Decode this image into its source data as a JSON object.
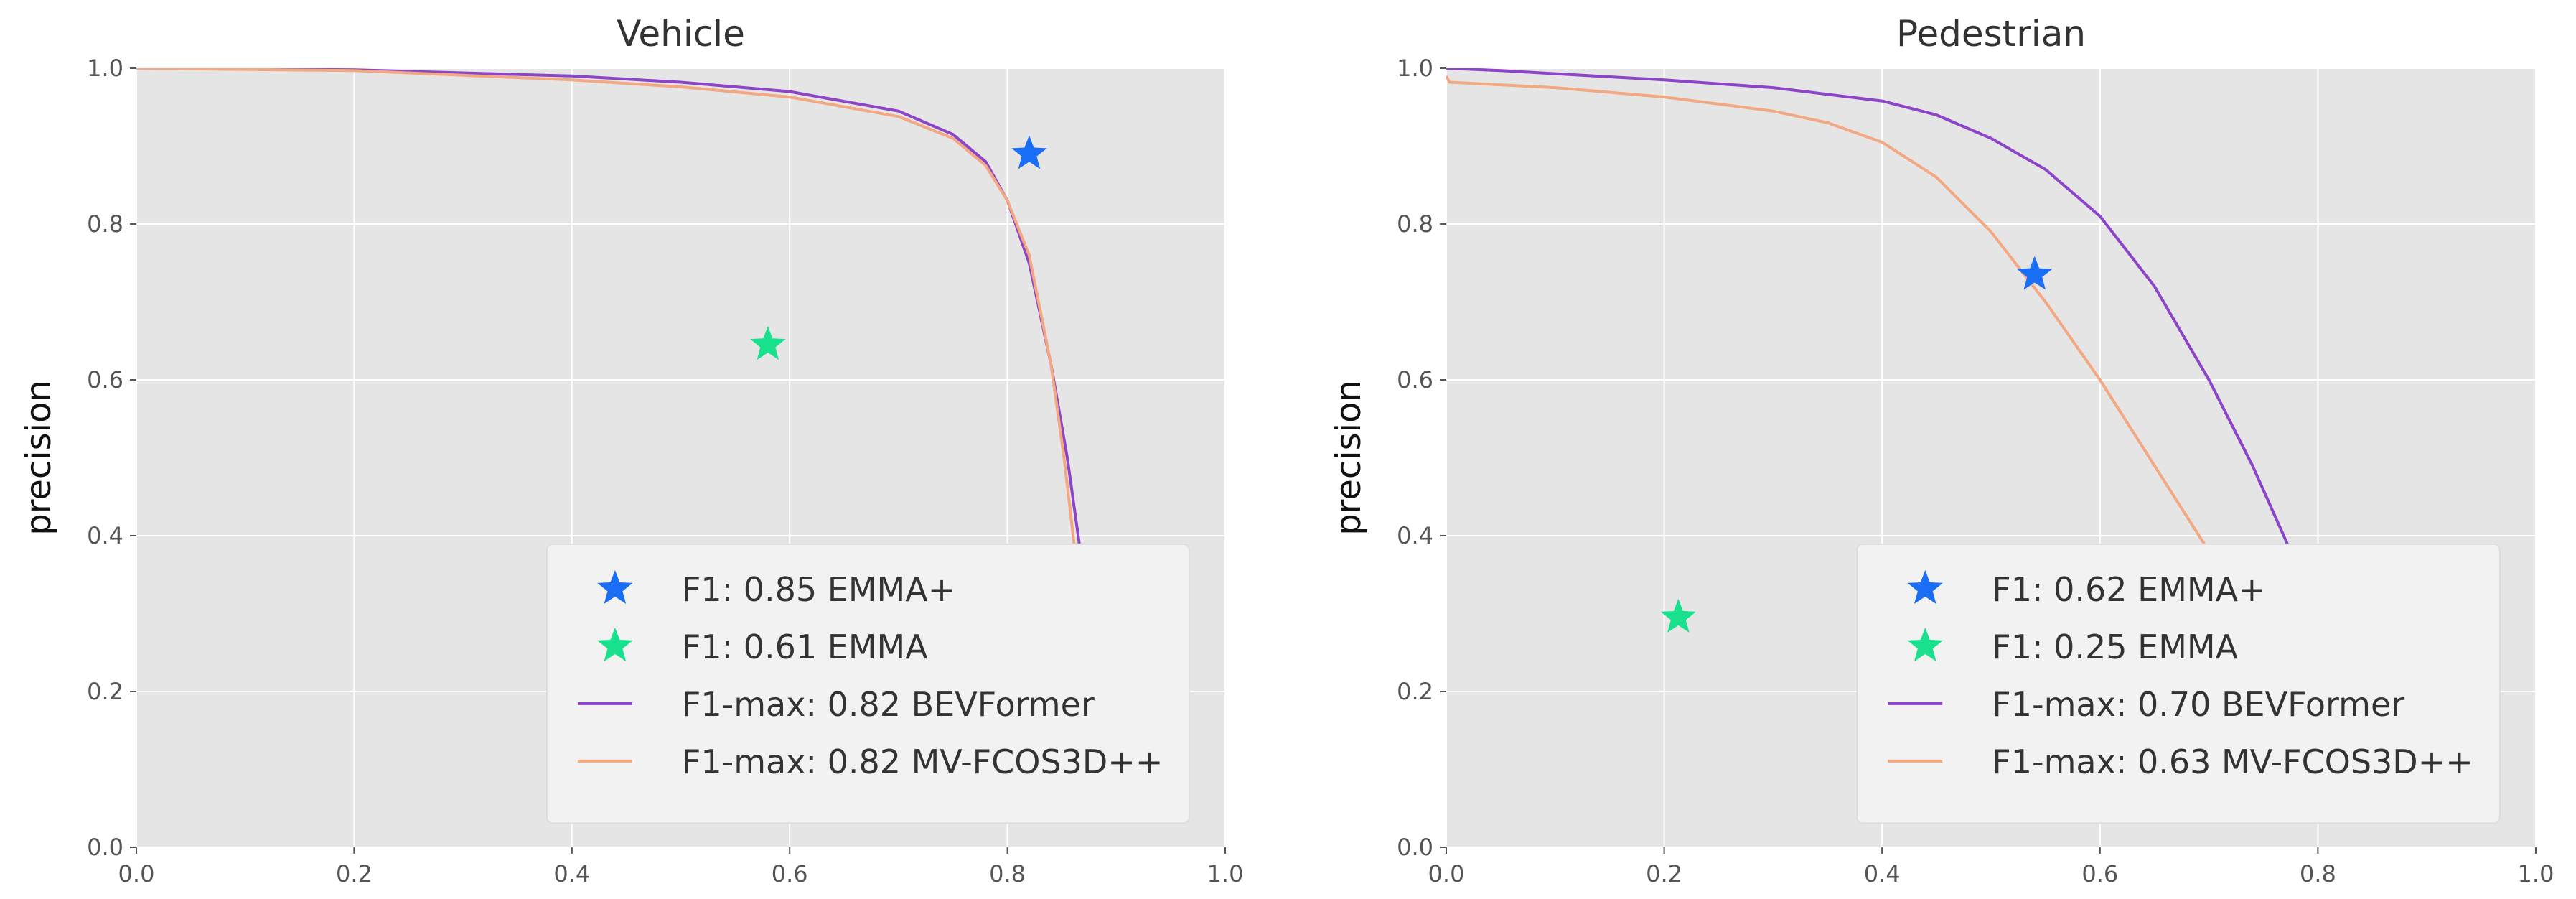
{
  "chart_data": [
    {
      "type": "line",
      "title": "Vehicle",
      "xlabel": "",
      "ylabel": "precision",
      "xlim": [
        0.0,
        1.0
      ],
      "ylim": [
        0.0,
        1.0
      ],
      "x_ticks": [
        "0.0",
        "0.2",
        "0.4",
        "0.6",
        "0.8",
        "1.0"
      ],
      "y_ticks": [
        "0.0",
        "0.2",
        "0.4",
        "0.6",
        "0.8",
        "1.0"
      ],
      "grid": true,
      "legend_position": "lower-right",
      "series": [
        {
          "name": "F1-max: 0.82 BEVFormer",
          "kind": "line",
          "color": "#8c44c8",
          "x": [
            0.0,
            0.2,
            0.4,
            0.5,
            0.6,
            0.7,
            0.75,
            0.78,
            0.8,
            0.82,
            0.84,
            0.855,
            0.867
          ],
          "y": [
            1.0,
            0.998,
            0.99,
            0.982,
            0.97,
            0.945,
            0.915,
            0.88,
            0.83,
            0.75,
            0.62,
            0.5,
            0.38
          ]
        },
        {
          "name": "F1-max: 0.82 MV-FCOS3D++",
          "kind": "line",
          "color": "#f2a882",
          "x": [
            0.0,
            0.2,
            0.4,
            0.5,
            0.6,
            0.7,
            0.75,
            0.78,
            0.8,
            0.82,
            0.84,
            0.852,
            0.862
          ],
          "y": [
            1.0,
            0.997,
            0.985,
            0.976,
            0.963,
            0.938,
            0.91,
            0.875,
            0.83,
            0.76,
            0.62,
            0.5,
            0.38
          ]
        },
        {
          "name": "F1: 0.85 EMMA+",
          "kind": "star",
          "color": "#1a6ef5",
          "x": [
            0.82
          ],
          "y": [
            0.89
          ]
        },
        {
          "name": "F1: 0.61 EMMA",
          "kind": "star",
          "color": "#19e08c",
          "x": [
            0.58
          ],
          "y": [
            0.645
          ]
        }
      ],
      "legend_order": [
        2,
        3,
        0,
        1
      ]
    },
    {
      "type": "line",
      "title": "Pedestrian",
      "xlabel": "",
      "ylabel": "precision",
      "xlim": [
        0.0,
        1.0
      ],
      "ylim": [
        0.0,
        1.0
      ],
      "x_ticks": [
        "0.0",
        "0.2",
        "0.4",
        "0.6",
        "0.8",
        "1.0"
      ],
      "y_ticks": [
        "0.0",
        "0.2",
        "0.4",
        "0.6",
        "0.8",
        "1.0"
      ],
      "grid": true,
      "legend_position": "lower-right",
      "series": [
        {
          "name": "F1-max: 0.70 BEVFormer",
          "kind": "line",
          "color": "#8c44c8",
          "x": [
            0.0,
            0.05,
            0.1,
            0.2,
            0.3,
            0.4,
            0.45,
            0.5,
            0.55,
            0.6,
            0.65,
            0.7,
            0.74,
            0.775
          ],
          "y": [
            1.0,
            0.997,
            0.993,
            0.985,
            0.975,
            0.958,
            0.94,
            0.91,
            0.87,
            0.81,
            0.72,
            0.6,
            0.49,
            0.38
          ]
        },
        {
          "name": "F1-max: 0.63 MV-FCOS3D++",
          "kind": "line",
          "color": "#f2a882",
          "x": [
            0.0,
            0.003,
            0.1,
            0.2,
            0.3,
            0.35,
            0.4,
            0.45,
            0.5,
            0.55,
            0.6,
            0.65,
            0.7
          ],
          "y": [
            0.99,
            0.982,
            0.975,
            0.963,
            0.945,
            0.93,
            0.905,
            0.86,
            0.79,
            0.7,
            0.6,
            0.49,
            0.38
          ]
        },
        {
          "name": "F1: 0.62 EMMA+",
          "kind": "star",
          "color": "#1a6ef5",
          "x": [
            0.54
          ],
          "y": [
            0.735
          ]
        },
        {
          "name": "F1: 0.25 EMMA",
          "kind": "star",
          "color": "#19e08c",
          "x": [
            0.213
          ],
          "y": [
            0.295
          ]
        }
      ],
      "legend_order": [
        2,
        3,
        0,
        1
      ]
    }
  ]
}
